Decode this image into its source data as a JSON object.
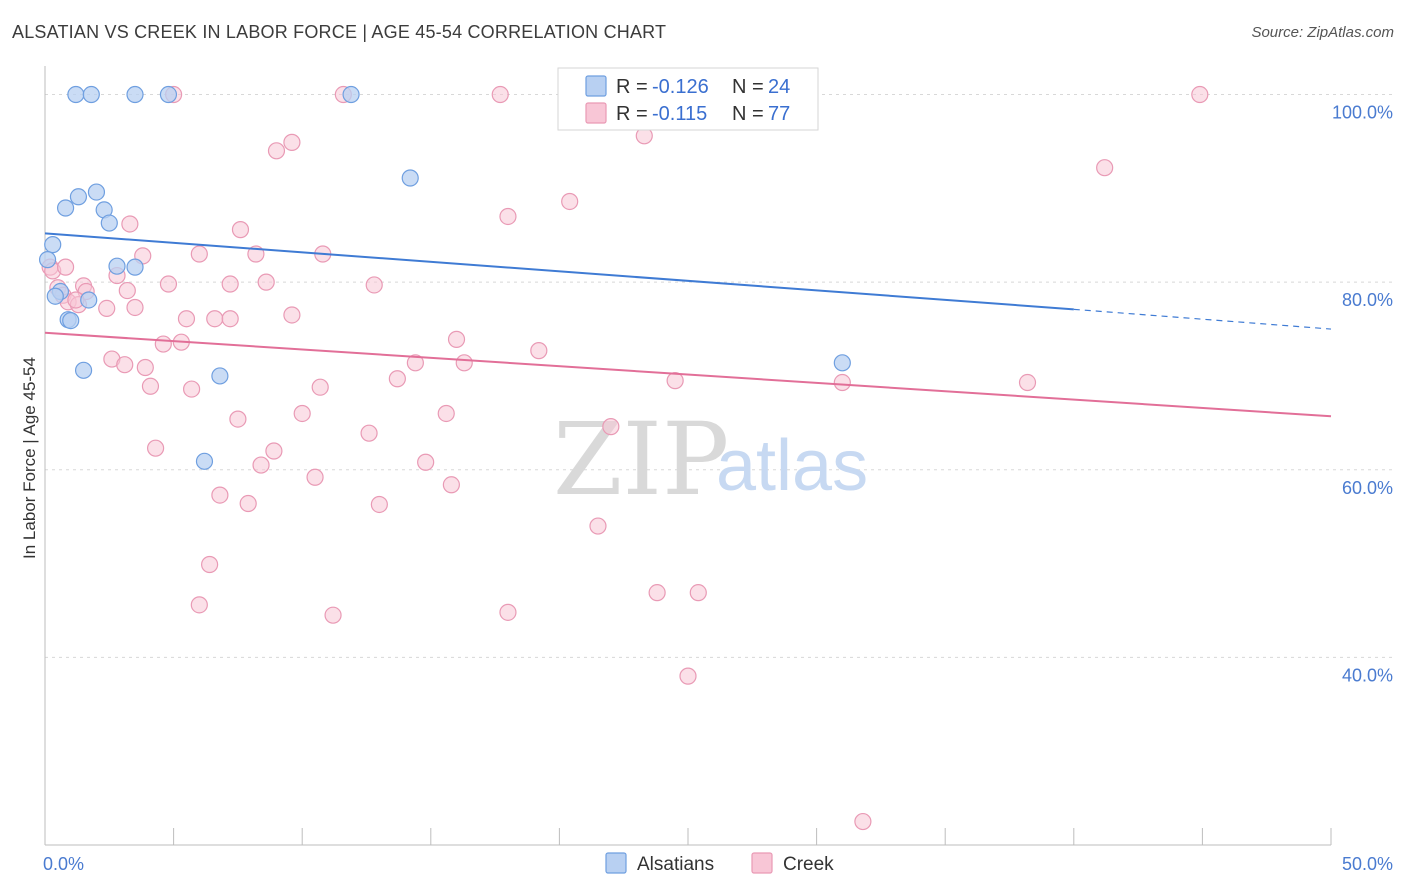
{
  "title": "ALSATIAN VS CREEK IN LABOR FORCE | AGE 45-54 CORRELATION CHART",
  "source": "Source: ZipAtlas.com",
  "colors": {
    "alsatian_fill": "#b8d0f2",
    "alsatian_stroke": "#6f9fe0",
    "alsatian_line": "#3f7bd4",
    "creek_fill": "#f8c6d6",
    "creek_stroke": "#e99ab5",
    "creek_line": "#e26f98",
    "grid": "#d8d8d8",
    "tick_label": "#4a7bd0"
  },
  "legend": {
    "rows": [
      {
        "r_label": "R = ",
        "r_value": "-0.126",
        "n_label": "N = ",
        "n_value": "24"
      },
      {
        "r_label": "R = ",
        "r_value": "-0.115",
        "n_label": "N = ",
        "n_value": "77"
      }
    ]
  },
  "watermark": {
    "zip": "ZIP",
    "atlas": "atlas"
  },
  "chart_data": {
    "type": "scatter",
    "title": "ALSATIAN VS CREEK IN LABOR FORCE | AGE 45-54 CORRELATION CHART",
    "xlabel": "",
    "ylabel": "In Labor Force | Age 45-54",
    "xlim": [
      0,
      50
    ],
    "ylim": [
      20,
      104
    ],
    "x_tick_labels": [
      {
        "value": 0,
        "label": "0.0%"
      },
      {
        "value": 50,
        "label": "50.0%"
      }
    ],
    "y_tick_labels": [
      {
        "value": 100,
        "label": "100.0%"
      },
      {
        "value": 80,
        "label": "80.0%"
      },
      {
        "value": 60,
        "label": "60.0%"
      },
      {
        "value": 40,
        "label": "40.0%"
      }
    ],
    "series": [
      {
        "name": "Alsatians",
        "r": -0.126,
        "n": 24,
        "trend": {
          "x0": 0,
          "y0": 85.2,
          "x1": 40,
          "y1": 77.1,
          "dash_to_x": 50,
          "dash_to_y": 75.0
        },
        "points": [
          [
            1.2,
            100
          ],
          [
            1.8,
            100
          ],
          [
            3.5,
            100
          ],
          [
            4.8,
            100
          ],
          [
            11.9,
            100
          ],
          [
            14.2,
            91.1
          ],
          [
            2.0,
            89.6
          ],
          [
            1.3,
            89.1
          ],
          [
            0.8,
            87.9
          ],
          [
            2.3,
            87.7
          ],
          [
            2.5,
            86.3
          ],
          [
            0.3,
            84.0
          ],
          [
            0.1,
            82.4
          ],
          [
            2.8,
            81.7
          ],
          [
            3.5,
            81.6
          ],
          [
            0.6,
            79.0
          ],
          [
            0.4,
            78.5
          ],
          [
            1.7,
            78.1
          ],
          [
            0.9,
            76.0
          ],
          [
            1.0,
            75.9
          ],
          [
            1.5,
            70.6
          ],
          [
            6.8,
            70.0
          ],
          [
            31.0,
            71.4
          ],
          [
            6.2,
            60.9
          ]
        ]
      },
      {
        "name": "Creek",
        "r": -0.115,
        "n": 77,
        "trend": {
          "x0": 0,
          "y0": 74.6,
          "x1": 50,
          "y1": 65.7
        },
        "points": [
          [
            5.0,
            100
          ],
          [
            11.6,
            100
          ],
          [
            17.7,
            100
          ],
          [
            44.9,
            100
          ],
          [
            9.6,
            94.9
          ],
          [
            9.0,
            94.0
          ],
          [
            23.3,
            95.6
          ],
          [
            41.2,
            92.2
          ],
          [
            20.4,
            88.6
          ],
          [
            18.0,
            87.0
          ],
          [
            3.3,
            86.2
          ],
          [
            7.6,
            85.6
          ],
          [
            6.0,
            83.0
          ],
          [
            8.2,
            83.0
          ],
          [
            10.8,
            83.0
          ],
          [
            3.8,
            82.8
          ],
          [
            0.2,
            81.6
          ],
          [
            2.8,
            80.7
          ],
          [
            8.6,
            80.0
          ],
          [
            4.8,
            79.8
          ],
          [
            7.2,
            79.8
          ],
          [
            12.8,
            79.7
          ],
          [
            1.5,
            79.6
          ],
          [
            0.5,
            79.4
          ],
          [
            3.2,
            79.1
          ],
          [
            1.6,
            79.0
          ],
          [
            0.7,
            78.6
          ],
          [
            0.9,
            77.9
          ],
          [
            1.3,
            77.6
          ],
          [
            3.5,
            77.3
          ],
          [
            2.4,
            77.2
          ],
          [
            9.6,
            76.5
          ],
          [
            5.5,
            76.1
          ],
          [
            6.6,
            76.1
          ],
          [
            7.2,
            76.1
          ],
          [
            16.0,
            73.9
          ],
          [
            5.3,
            73.6
          ],
          [
            4.6,
            73.4
          ],
          [
            19.2,
            72.7
          ],
          [
            2.6,
            71.8
          ],
          [
            14.4,
            71.4
          ],
          [
            16.3,
            71.4
          ],
          [
            3.1,
            71.2
          ],
          [
            3.9,
            70.9
          ],
          [
            13.7,
            69.7
          ],
          [
            24.5,
            69.5
          ],
          [
            31.0,
            69.3
          ],
          [
            38.2,
            69.3
          ],
          [
            4.1,
            68.9
          ],
          [
            10.7,
            68.8
          ],
          [
            5.7,
            68.6
          ],
          [
            10.0,
            66.0
          ],
          [
            15.6,
            66.0
          ],
          [
            7.5,
            65.4
          ],
          [
            22.0,
            64.6
          ],
          [
            12.6,
            63.9
          ],
          [
            4.3,
            62.3
          ],
          [
            8.9,
            62.0
          ],
          [
            14.8,
            60.8
          ],
          [
            8.4,
            60.5
          ],
          [
            10.5,
            59.2
          ],
          [
            15.8,
            58.4
          ],
          [
            6.8,
            57.3
          ],
          [
            7.9,
            56.4
          ],
          [
            13.0,
            56.3
          ],
          [
            21.5,
            54.0
          ],
          [
            6.4,
            49.9
          ],
          [
            23.8,
            46.9
          ],
          [
            25.4,
            46.9
          ],
          [
            6.0,
            45.6
          ],
          [
            18.0,
            44.8
          ],
          [
            11.2,
            44.5
          ],
          [
            25.0,
            38.0
          ],
          [
            31.8,
            22.5
          ],
          [
            0.3,
            81.2
          ],
          [
            0.8,
            81.6
          ],
          [
            1.2,
            78.1
          ]
        ]
      }
    ]
  },
  "bottom_legend": [
    {
      "label": "Alsatians"
    },
    {
      "label": "Creek"
    }
  ]
}
